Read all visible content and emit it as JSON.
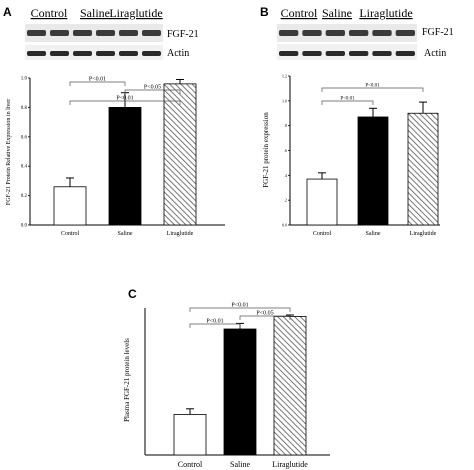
{
  "chart_data": [
    {
      "panel": "A",
      "type": "bar",
      "blot": {
        "group_labels": [
          "Control",
          "Saline",
          "Liraglutide"
        ],
        "band_labels": [
          "FGF-21",
          "Actin"
        ]
      },
      "ylabel": "FGF-21 Protein Relative Expression in liver",
      "yticks": [
        "0.0",
        "0.2",
        "0.4",
        "0.6",
        "0.8",
        "1.0"
      ],
      "ylim": [
        0,
        1.0
      ],
      "categories": [
        "Control",
        "Saline",
        "Liraglutide"
      ],
      "values": [
        0.26,
        0.8,
        0.96
      ],
      "errors": [
        0.06,
        0.1,
        0.03
      ],
      "fills": [
        "white",
        "black",
        "hatched"
      ],
      "significance": [
        {
          "from": 0,
          "to": 1,
          "label": "P<0.01"
        },
        {
          "from": 0,
          "to": 2,
          "label": "P<0.01"
        },
        {
          "from": 1,
          "to": 2,
          "label": "P<0.05"
        }
      ]
    },
    {
      "panel": "B",
      "type": "bar",
      "blot": {
        "group_labels": [
          "Control",
          "Saline",
          "Liraglutide"
        ],
        "band_labels": [
          "FGF-21",
          "Actin"
        ]
      },
      "ylabel": "FGF-21 protein expression",
      "yticks": [
        "0.0",
        ".2",
        ".4",
        ".6",
        ".8",
        "1.0",
        "1.2"
      ],
      "ylim": [
        0,
        1.2
      ],
      "categories": [
        "Control",
        "Saline",
        "Liraglutide"
      ],
      "values": [
        0.37,
        0.87,
        0.9
      ],
      "errors": [
        0.05,
        0.07,
        0.09
      ],
      "fills": [
        "white",
        "black",
        "hatched"
      ],
      "significance": [
        {
          "from": 0,
          "to": 1,
          "label": "P<0.01"
        },
        {
          "from": 0,
          "to": 2,
          "label": "P<0.01"
        }
      ]
    },
    {
      "panel": "C",
      "type": "bar",
      "ylabel": "Plasma FGF-21 protein levels",
      "yticks": [],
      "ylim": [
        0,
        1.05
      ],
      "categories": [
        "Control",
        "Saline",
        "Liraglutide"
      ],
      "values": [
        0.29,
        0.9,
        0.99
      ],
      "errors": [
        0.04,
        0.04,
        0.01
      ],
      "fills": [
        "white",
        "black",
        "hatched"
      ],
      "significance": [
        {
          "from": 0,
          "to": 1,
          "label": "P<0.01"
        },
        {
          "from": 0,
          "to": 2,
          "label": "P<0.01"
        },
        {
          "from": 1,
          "to": 2,
          "label": "P<0.05"
        }
      ]
    }
  ],
  "colors": {
    "bar_black": "#000000",
    "bar_white": "#ffffff",
    "hatch": "#555555",
    "axis": "#000000"
  }
}
